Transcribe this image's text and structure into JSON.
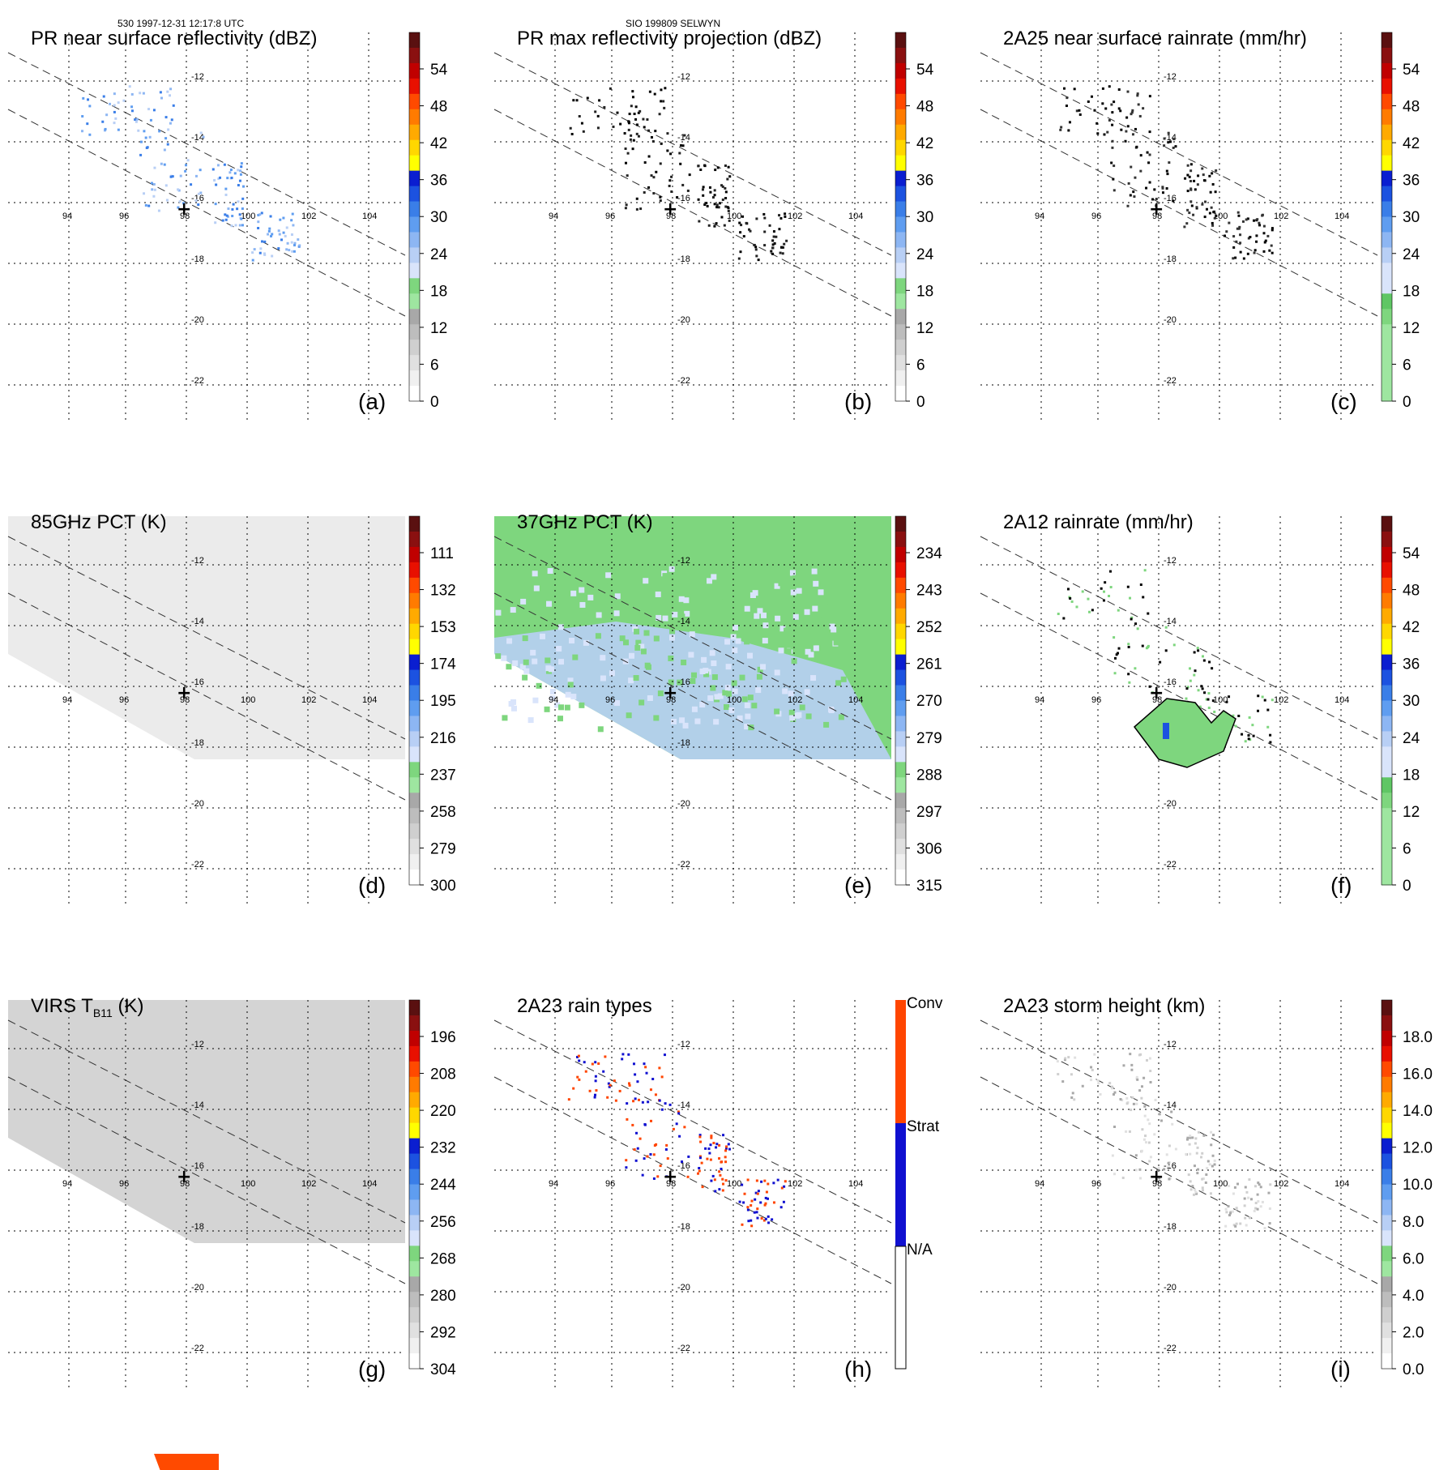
{
  "header": {
    "left": "530 1997-12-31 12:17:8 UTC",
    "center": "SIO 199809 SELWYN"
  },
  "axes": {
    "lon_labels": [
      "94",
      "96",
      "98",
      "100",
      "102",
      "104"
    ],
    "lat_labels": [
      "-12",
      "-14",
      "-16",
      "-18",
      "-20",
      "-22"
    ]
  },
  "colors": {
    "gray_scale": [
      "#ffffff",
      "#f0f0f0",
      "#e0e0e0",
      "#cfcfcf",
      "#bdbdbd",
      "#a8a8a8"
    ],
    "green": [
      "#9ee6a0",
      "#7ed67e",
      "#5fc664"
    ],
    "blue": [
      "#d9e4fb",
      "#b8cff5",
      "#8db6f3",
      "#5f9df0",
      "#3a7ee8",
      "#1c52e0",
      "#0a1ed0"
    ],
    "warm": [
      "#ffff00",
      "#ffd700",
      "#ffaa00",
      "#ff7b00",
      "#ff4a00",
      "#e81000",
      "#c00000",
      "#8a1010",
      "#5a1010"
    ],
    "rain_type": {
      "conv": "#ff4500",
      "strat": "#1010d0",
      "na": "#ffffff"
    }
  },
  "chart_data": [
    {
      "type": "heatmap",
      "id": "a",
      "panel_label": "(a)",
      "title": "PR near surface reflectivity (dBZ)",
      "colorbar": {
        "scheme": "dbz",
        "ticks": [
          "54",
          "48",
          "42",
          "36",
          "30",
          "24",
          "18",
          "12",
          "6",
          "0"
        ]
      },
      "center_marker": true
    },
    {
      "type": "heatmap",
      "id": "b",
      "panel_label": "(b)",
      "title": "PR max reflectivity projection (dBZ)",
      "colorbar": {
        "scheme": "dbz",
        "ticks": [
          "54",
          "48",
          "42",
          "36",
          "30",
          "24",
          "18",
          "12",
          "6",
          "0"
        ]
      },
      "center_marker": true
    },
    {
      "type": "heatmap",
      "id": "c",
      "panel_label": "(c)",
      "title": "2A25 near surface rainrate (mm/hr)",
      "colorbar": {
        "scheme": "rain",
        "ticks": [
          "54",
          "48",
          "42",
          "36",
          "30",
          "24",
          "18",
          "12",
          "6",
          "0"
        ]
      },
      "center_marker": true
    },
    {
      "type": "heatmap",
      "id": "d",
      "panel_label": "(d)",
      "title": "85GHz PCT (K)",
      "colorbar": {
        "scheme": "pct",
        "ticks": [
          "111",
          "132",
          "153",
          "174",
          "195",
          "216",
          "237",
          "258",
          "279",
          "300"
        ]
      },
      "center_marker": true
    },
    {
      "type": "heatmap",
      "id": "e",
      "panel_label": "(e)",
      "title": "37GHz PCT (K)",
      "colorbar": {
        "scheme": "pct",
        "ticks": [
          "234",
          "243",
          "252",
          "261",
          "270",
          "279",
          "288",
          "297",
          "306",
          "315"
        ]
      },
      "center_marker": true
    },
    {
      "type": "heatmap",
      "id": "f",
      "panel_label": "(f)",
      "title": "2A12 rainrate (mm/hr)",
      "colorbar": {
        "scheme": "rain",
        "ticks": [
          "54",
          "48",
          "42",
          "36",
          "30",
          "24",
          "18",
          "12",
          "6",
          "0"
        ]
      },
      "center_marker": true
    },
    {
      "type": "heatmap",
      "id": "g",
      "panel_label": "(g)",
      "title": "VIRS T",
      "title_sub": "B11",
      "title_tail": " (K)",
      "colorbar": {
        "scheme": "virs",
        "ticks": [
          "196",
          "208",
          "220",
          "232",
          "244",
          "256",
          "268",
          "280",
          "292",
          "304"
        ]
      },
      "center_marker": true
    },
    {
      "type": "heatmap",
      "id": "h",
      "panel_label": "(h)",
      "title": "2A23 rain types",
      "colorbar": {
        "scheme": "raintype",
        "ticks": [
          "Conv",
          "Strat",
          "N/A"
        ]
      },
      "center_marker": true
    },
    {
      "type": "heatmap",
      "id": "i",
      "panel_label": "(i)",
      "title": "2A23 storm height (km)",
      "colorbar": {
        "scheme": "height",
        "ticks": [
          "18.0",
          "16.0",
          "14.0",
          "12.0",
          "10.0",
          "8.0",
          "6.0",
          "4.0",
          "2.0",
          "0.0"
        ]
      },
      "center_marker": true
    }
  ]
}
